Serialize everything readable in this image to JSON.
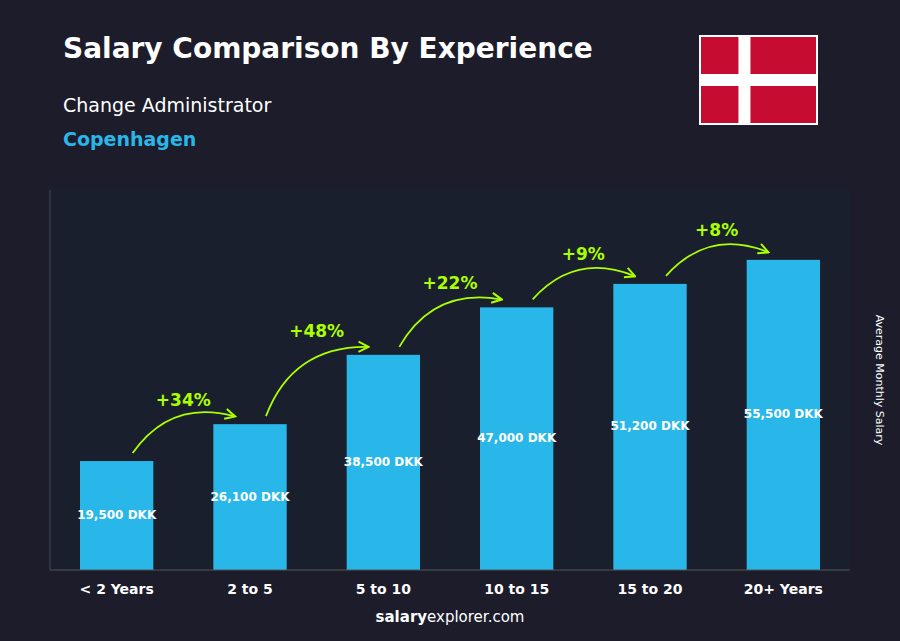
{
  "chart_data": {
    "type": "bar",
    "title": "Salary Comparison By Experience",
    "subtitle": [
      "Change Administrator",
      "Copenhagen"
    ],
    "ylabel": "Average Monthly Salary",
    "categories": [
      "< 2 Years",
      "2 to 5",
      "5 to 10",
      "10 to 15",
      "15 to 20",
      "20+ Years"
    ],
    "values": [
      19500,
      26100,
      38500,
      47000,
      51200,
      55500
    ],
    "value_labels": [
      "19,500 DKK",
      "26,100 DKK",
      "38,500 DKK",
      "47,000 DKK",
      "51,200 DKK",
      "55,500 DKK"
    ],
    "data_labels": true,
    "annotations": [
      "+34%",
      "+48%",
      "+22%",
      "+9%",
      "+8%"
    ],
    "footer": [
      "salary",
      "explorer.com"
    ],
    "color": "#29b6e8",
    "ylim": [
      0,
      68000
    ],
    "tick_labels": "x",
    "grid": false
  }
}
